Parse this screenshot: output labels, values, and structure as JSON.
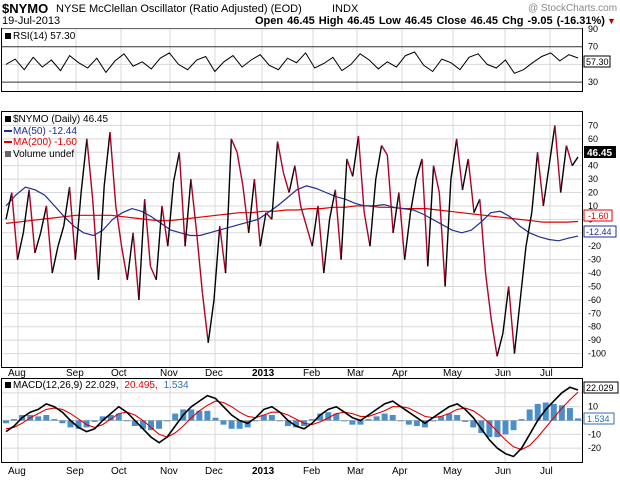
{
  "header": {
    "symbol": "$NYMO",
    "name": "NYSE McClellan Oscillator (Ratio Adjusted) (EOD)",
    "exchange": "INDX",
    "date": "19-Jul-2013",
    "watermark": "@ StockCharts.com",
    "quote_line": "Open 46.45  High 46.45  Low 46.45  Close 46.45  Chg -9.05 (-16.31%)",
    "chg_arrow": "▼",
    "chg_color": "#c00000"
  },
  "colors": {
    "price_up": "#000000",
    "price_down": "#b0002a",
    "ma50": "#1f2f8f",
    "ma200": "#e00000",
    "rsi": "#000000",
    "macd": "#000000",
    "signal": "#e00000",
    "histogram": "#4a8fc9",
    "grid": "#d8d8d8",
    "frame": "#000000"
  },
  "chart_data": [
    {
      "type": "line",
      "panel": "rsi",
      "legend": "RSI(14) 57.30",
      "value_label": "57.30",
      "ylim": [
        20,
        90
      ],
      "y_ticks": [
        30,
        50,
        70,
        90
      ],
      "reference_lines": [
        30,
        70
      ],
      "series": [
        {
          "name": "RSI(14)",
          "values": [
            50,
            56,
            44,
            58,
            47,
            55,
            43,
            60,
            52,
            46,
            57,
            41,
            54,
            62,
            48,
            53,
            45,
            57,
            63,
            50,
            44,
            55,
            59,
            42,
            53,
            60,
            47,
            55,
            61,
            49,
            44,
            57,
            52,
            63,
            46,
            51,
            58,
            43,
            50,
            62,
            55,
            45,
            53,
            47,
            60,
            64,
            49,
            42,
            56,
            52,
            44,
            58,
            62,
            50,
            46,
            55,
            40,
            44,
            52,
            59,
            63,
            54,
            61,
            57.3
          ]
        }
      ]
    },
    {
      "type": "line",
      "panel": "price",
      "ylim": [
        -110,
        80
      ],
      "y_ticks": [
        -100,
        -90,
        -80,
        -70,
        -60,
        -50,
        -40,
        -30,
        -20,
        -10,
        0,
        10,
        20,
        30,
        40,
        50,
        60,
        70
      ],
      "x_labels": [
        "Aug",
        "Sep",
        "Oct",
        "Nov",
        "Dec",
        "2013",
        "Feb",
        "Mar",
        "Apr",
        "May",
        "Jun",
        "Jul"
      ],
      "legend": [
        {
          "text": "$NYMO (Daily) 46.45",
          "swatch": "#000000"
        },
        {
          "text": "MA(50) -12.44",
          "swatch": "#1f2f8f"
        },
        {
          "text": "MA(200) -1.60",
          "swatch": "#e00000"
        },
        {
          "text": "Volume undef",
          "swatch": "#666666"
        }
      ],
      "price_tag": "46.45",
      "ma50_tag": "-12.44",
      "ma200_tag": "-1.60",
      "series": [
        {
          "name": "$NYMO (Daily)",
          "values": [
            0,
            20,
            -30,
            -10,
            22,
            -25,
            -10,
            10,
            -40,
            -20,
            -5,
            24,
            -30,
            20,
            60,
            15,
            -45,
            25,
            65,
            10,
            -20,
            -45,
            -10,
            -60,
            15,
            -35,
            -45,
            10,
            -20,
            28,
            50,
            -20,
            30,
            -10,
            -55,
            -92,
            -60,
            -5,
            -40,
            60,
            50,
            25,
            -10,
            30,
            -20,
            5,
            0,
            58,
            35,
            20,
            40,
            10,
            -5,
            -20,
            10,
            -40,
            0,
            22,
            -30,
            45,
            32,
            62,
            5,
            -20,
            30,
            55,
            48,
            -10,
            20,
            -30,
            5,
            30,
            45,
            -35,
            40,
            20,
            -50,
            30,
            60,
            22,
            45,
            5,
            15,
            -40,
            -75,
            -102,
            -85,
            -50,
            -100,
            -60,
            -20,
            5,
            50,
            10,
            40,
            70,
            20,
            55,
            40,
            46.45
          ]
        },
        {
          "name": "MA(50)",
          "values": [
            10,
            18,
            24,
            22,
            18,
            10,
            2,
            -5,
            -10,
            -12,
            -8,
            0,
            5,
            8,
            6,
            2,
            -3,
            -8,
            -10,
            -12,
            -12,
            -10,
            -8,
            -6,
            -4,
            -2,
            0,
            5,
            10,
            16,
            22,
            25,
            23,
            20,
            17,
            15,
            12,
            10,
            10,
            11,
            9,
            8,
            7,
            4,
            0,
            -4,
            -8,
            -10,
            -8,
            -2,
            5,
            6,
            2,
            -5,
            -10,
            -13,
            -15,
            -16,
            -14,
            -12.44
          ]
        },
        {
          "name": "MA(200)",
          "values": [
            -3,
            -2,
            -1,
            0,
            1,
            2,
            3,
            3,
            3,
            3,
            2,
            1,
            0,
            -1,
            -1,
            0,
            1,
            2,
            3,
            4,
            5,
            5,
            6,
            6,
            7,
            7,
            8,
            8,
            9,
            9,
            10,
            10,
            9,
            9,
            8,
            8,
            8,
            7,
            6,
            5,
            4,
            3,
            2,
            1,
            0,
            -1,
            -2,
            -2,
            -2,
            -1.6
          ]
        }
      ]
    },
    {
      "type": "line",
      "panel": "macd",
      "legend": "MACD(12,26,9) 22.029, 20.495, 1.534",
      "legend_parts": [
        "MACD(12,26,9) 22.029,",
        "20.495,",
        "1.534"
      ],
      "macd_tag": "22.029",
      "hist_tag": "1.534",
      "ylim": [
        -30,
        30
      ],
      "y_ticks": [
        -20,
        -10,
        0,
        10,
        20
      ],
      "x_labels": [
        "Aug",
        "Sep",
        "Oct",
        "Nov",
        "Dec",
        "2013",
        "Feb",
        "Mar",
        "Apr",
        "May",
        "Jun",
        "Jul"
      ],
      "series": [
        {
          "name": "MACD",
          "values": [
            -8,
            -4,
            2,
            6,
            8,
            12,
            10,
            6,
            0,
            -5,
            -8,
            -6,
            0,
            5,
            10,
            6,
            0,
            -6,
            -12,
            -16,
            -12,
            -4,
            4,
            10,
            14,
            18,
            16,
            10,
            4,
            0,
            -2,
            2,
            8,
            10,
            6,
            0,
            -4,
            -6,
            -2,
            4,
            8,
            10,
            6,
            2,
            0,
            4,
            8,
            12,
            14,
            10,
            6,
            2,
            -2,
            2,
            6,
            10,
            12,
            8,
            2,
            -6,
            -14,
            -20,
            -24,
            -26,
            -20,
            -10,
            0,
            8,
            14,
            20,
            24,
            22.029
          ]
        },
        {
          "name": "Signal",
          "values": [
            -6,
            -5,
            -2,
            2,
            5,
            8,
            9,
            8,
            5,
            1,
            -3,
            -5,
            -3,
            1,
            5,
            6,
            4,
            0,
            -5,
            -10,
            -12,
            -9,
            -4,
            2,
            7,
            11,
            14,
            13,
            10,
            6,
            3,
            2,
            4,
            6,
            6,
            4,
            1,
            -2,
            -3,
            -1,
            2,
            5,
            6,
            5,
            3,
            3,
            5,
            7,
            10,
            10,
            9,
            6,
            3,
            2,
            3,
            5,
            8,
            9,
            7,
            3,
            -2,
            -8,
            -14,
            -19,
            -21,
            -18,
            -12,
            -5,
            2,
            9,
            15,
            20.495
          ]
        },
        {
          "name": "Histogram",
          "values": [
            -2,
            1,
            4,
            4,
            3,
            4,
            1,
            -2,
            -5,
            -6,
            -5,
            -1,
            3,
            4,
            5,
            0,
            -4,
            -6,
            -7,
            -6,
            0,
            5,
            8,
            8,
            7,
            7,
            2,
            -3,
            -6,
            -6,
            -5,
            0,
            4,
            4,
            0,
            -4,
            -5,
            -4,
            1,
            5,
            6,
            5,
            0,
            -3,
            -3,
            1,
            3,
            5,
            4,
            0,
            -3,
            -4,
            -5,
            0,
            3,
            5,
            4,
            -1,
            -5,
            -9,
            -12,
            -12,
            -10,
            -7,
            1,
            8,
            12,
            13,
            12,
            11,
            9,
            1.534
          ]
        }
      ]
    }
  ]
}
